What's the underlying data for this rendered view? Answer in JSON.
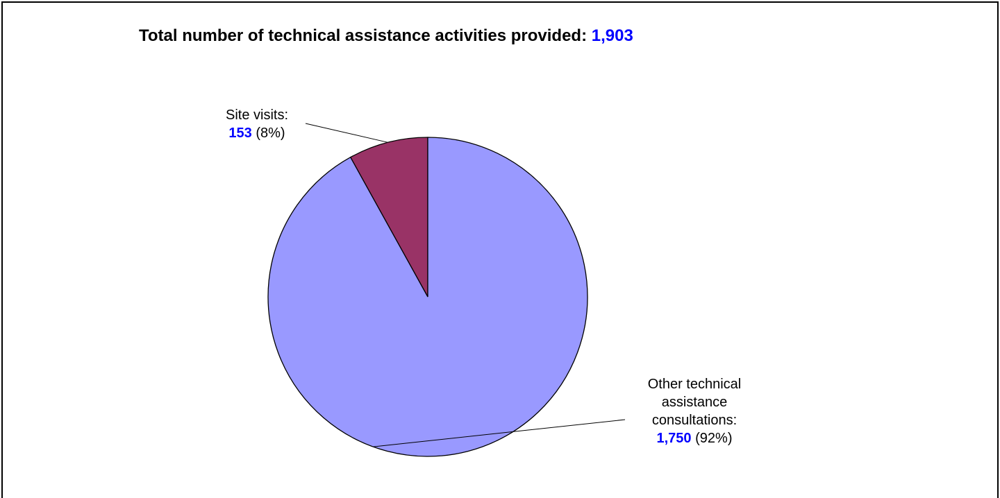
{
  "chart_data": {
    "type": "pie",
    "title_prefix": "Total number of technical assistance activities provided:",
    "title_total": "1,903",
    "start_angle_deg": 0,
    "direction": "counterclockwise",
    "slices": [
      {
        "label": "Site visits:",
        "value": 153,
        "value_text": "153",
        "percent_text": "(8%)",
        "color": "#993366"
      },
      {
        "label": "Other technical assistance consultations:",
        "label_lines": [
          "Other technical",
          "assistance",
          "consultations:"
        ],
        "value": 1750,
        "value_text": "1,750",
        "percent_text": "(92%)",
        "color": "#9999ff"
      }
    ],
    "colors": {
      "value_text": "#0000ff",
      "outline": "#000000"
    }
  }
}
